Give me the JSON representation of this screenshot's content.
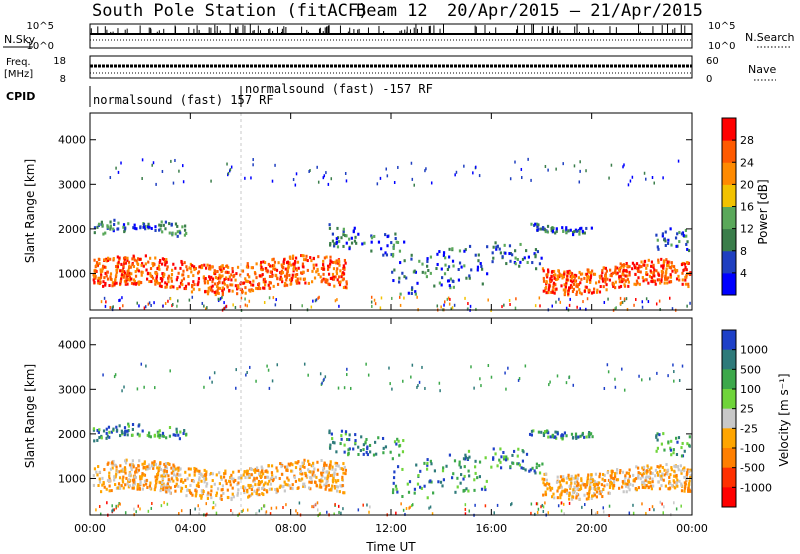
{
  "title": {
    "station": "South Pole Station (fitACF)",
    "beam": "Beam 12",
    "date_range": "20/Apr/2015 – 21/Apr/2015"
  },
  "top_panels": {
    "nsky_label": "N.Sky",
    "nsearch_label": "N.Search",
    "freq_label_1": "Freq.",
    "freq_label_2": "[MHz]",
    "nave_label": "Nave",
    "cpid_label": "CPID",
    "nsky_ticks": [
      "10^5",
      "10^0"
    ],
    "nsearch_ticks": [
      "10^5",
      "10^0"
    ],
    "freq_ticks": [
      "18",
      "8"
    ],
    "nave_ticks": [
      "60",
      "0"
    ],
    "cpid_annotation_1": "normalsound (fast) 157 RF",
    "cpid_annotation_2": "normalsound (fast) -157 RF"
  },
  "colors": {
    "power": [
      "#0000ff",
      "#1f3fc0",
      "#3a7d4a",
      "#5aa85a",
      "#f2c200",
      "#ff8a00",
      "#ff5a00",
      "#ff0000"
    ],
    "velocity": [
      "#1e40c8",
      "#2e7a7a",
      "#3ca84a",
      "#6fd43a",
      "#c8c8c8",
      "#ffa500",
      "#ff7f00",
      "#ff3000",
      "#ff0000"
    ]
  },
  "chart_data": [
    {
      "type": "heatmap",
      "title": "Power",
      "xlabel": "",
      "ylabel": "Slant Range [km]",
      "x_ticks": [
        "00:00",
        "04:00",
        "08:00",
        "12:00",
        "16:00",
        "20:00",
        "00:00"
      ],
      "y_ticks": [
        "1000",
        "2000",
        "3000",
        "4000"
      ],
      "ylim": [
        180,
        4600
      ],
      "colorbar": {
        "label": "Power [dB]",
        "ticks": [
          "4",
          "8",
          "12",
          "16",
          "20",
          "24",
          "28"
        ],
        "range": [
          0,
          32
        ]
      }
    },
    {
      "type": "heatmap",
      "title": "Velocity",
      "xlabel": "Time UT",
      "ylabel": "Slant Range [km]",
      "x_ticks": [
        "00:00",
        "04:00",
        "08:00",
        "12:00",
        "16:00",
        "20:00",
        "00:00"
      ],
      "y_ticks": [
        "1000",
        "2000",
        "3000",
        "4000"
      ],
      "ylim": [
        180,
        4600
      ],
      "colorbar": {
        "label": "Velocity [m s⁻¹]",
        "ticks": [
          "1000",
          "500",
          "100",
          "25",
          "-25",
          "-100",
          "-500",
          "-1000"
        ],
        "range": [
          -1000,
          1000
        ]
      }
    }
  ]
}
